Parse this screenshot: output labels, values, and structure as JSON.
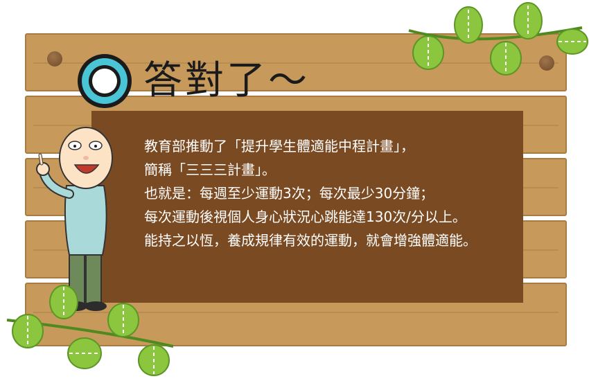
{
  "title": {
    "ring_icon": "circle-mark-icon",
    "text": "答對了～"
  },
  "message": {
    "lines": [
      "教育部推動了「提升學生體適能中程計畫」，",
      "簡稱「三三三計畫」。",
      "也就是：每週至少運動3次；每次最少30分鐘；",
      "每次運動後視個人身心狀況心跳能達130次/分以上。",
      "能持之以恆，養成規律有效的運動，就會增強體適能。"
    ]
  },
  "colors": {
    "wood": "#c79a5c",
    "panel": "#7a4a22",
    "ring_accent": "#49c5d6",
    "leaf": "#8cc63e"
  },
  "decorations": {
    "character": "old-man-character",
    "vine_top": "leaf-vine-icon",
    "vine_bottom": "leaf-vine-icon"
  }
}
